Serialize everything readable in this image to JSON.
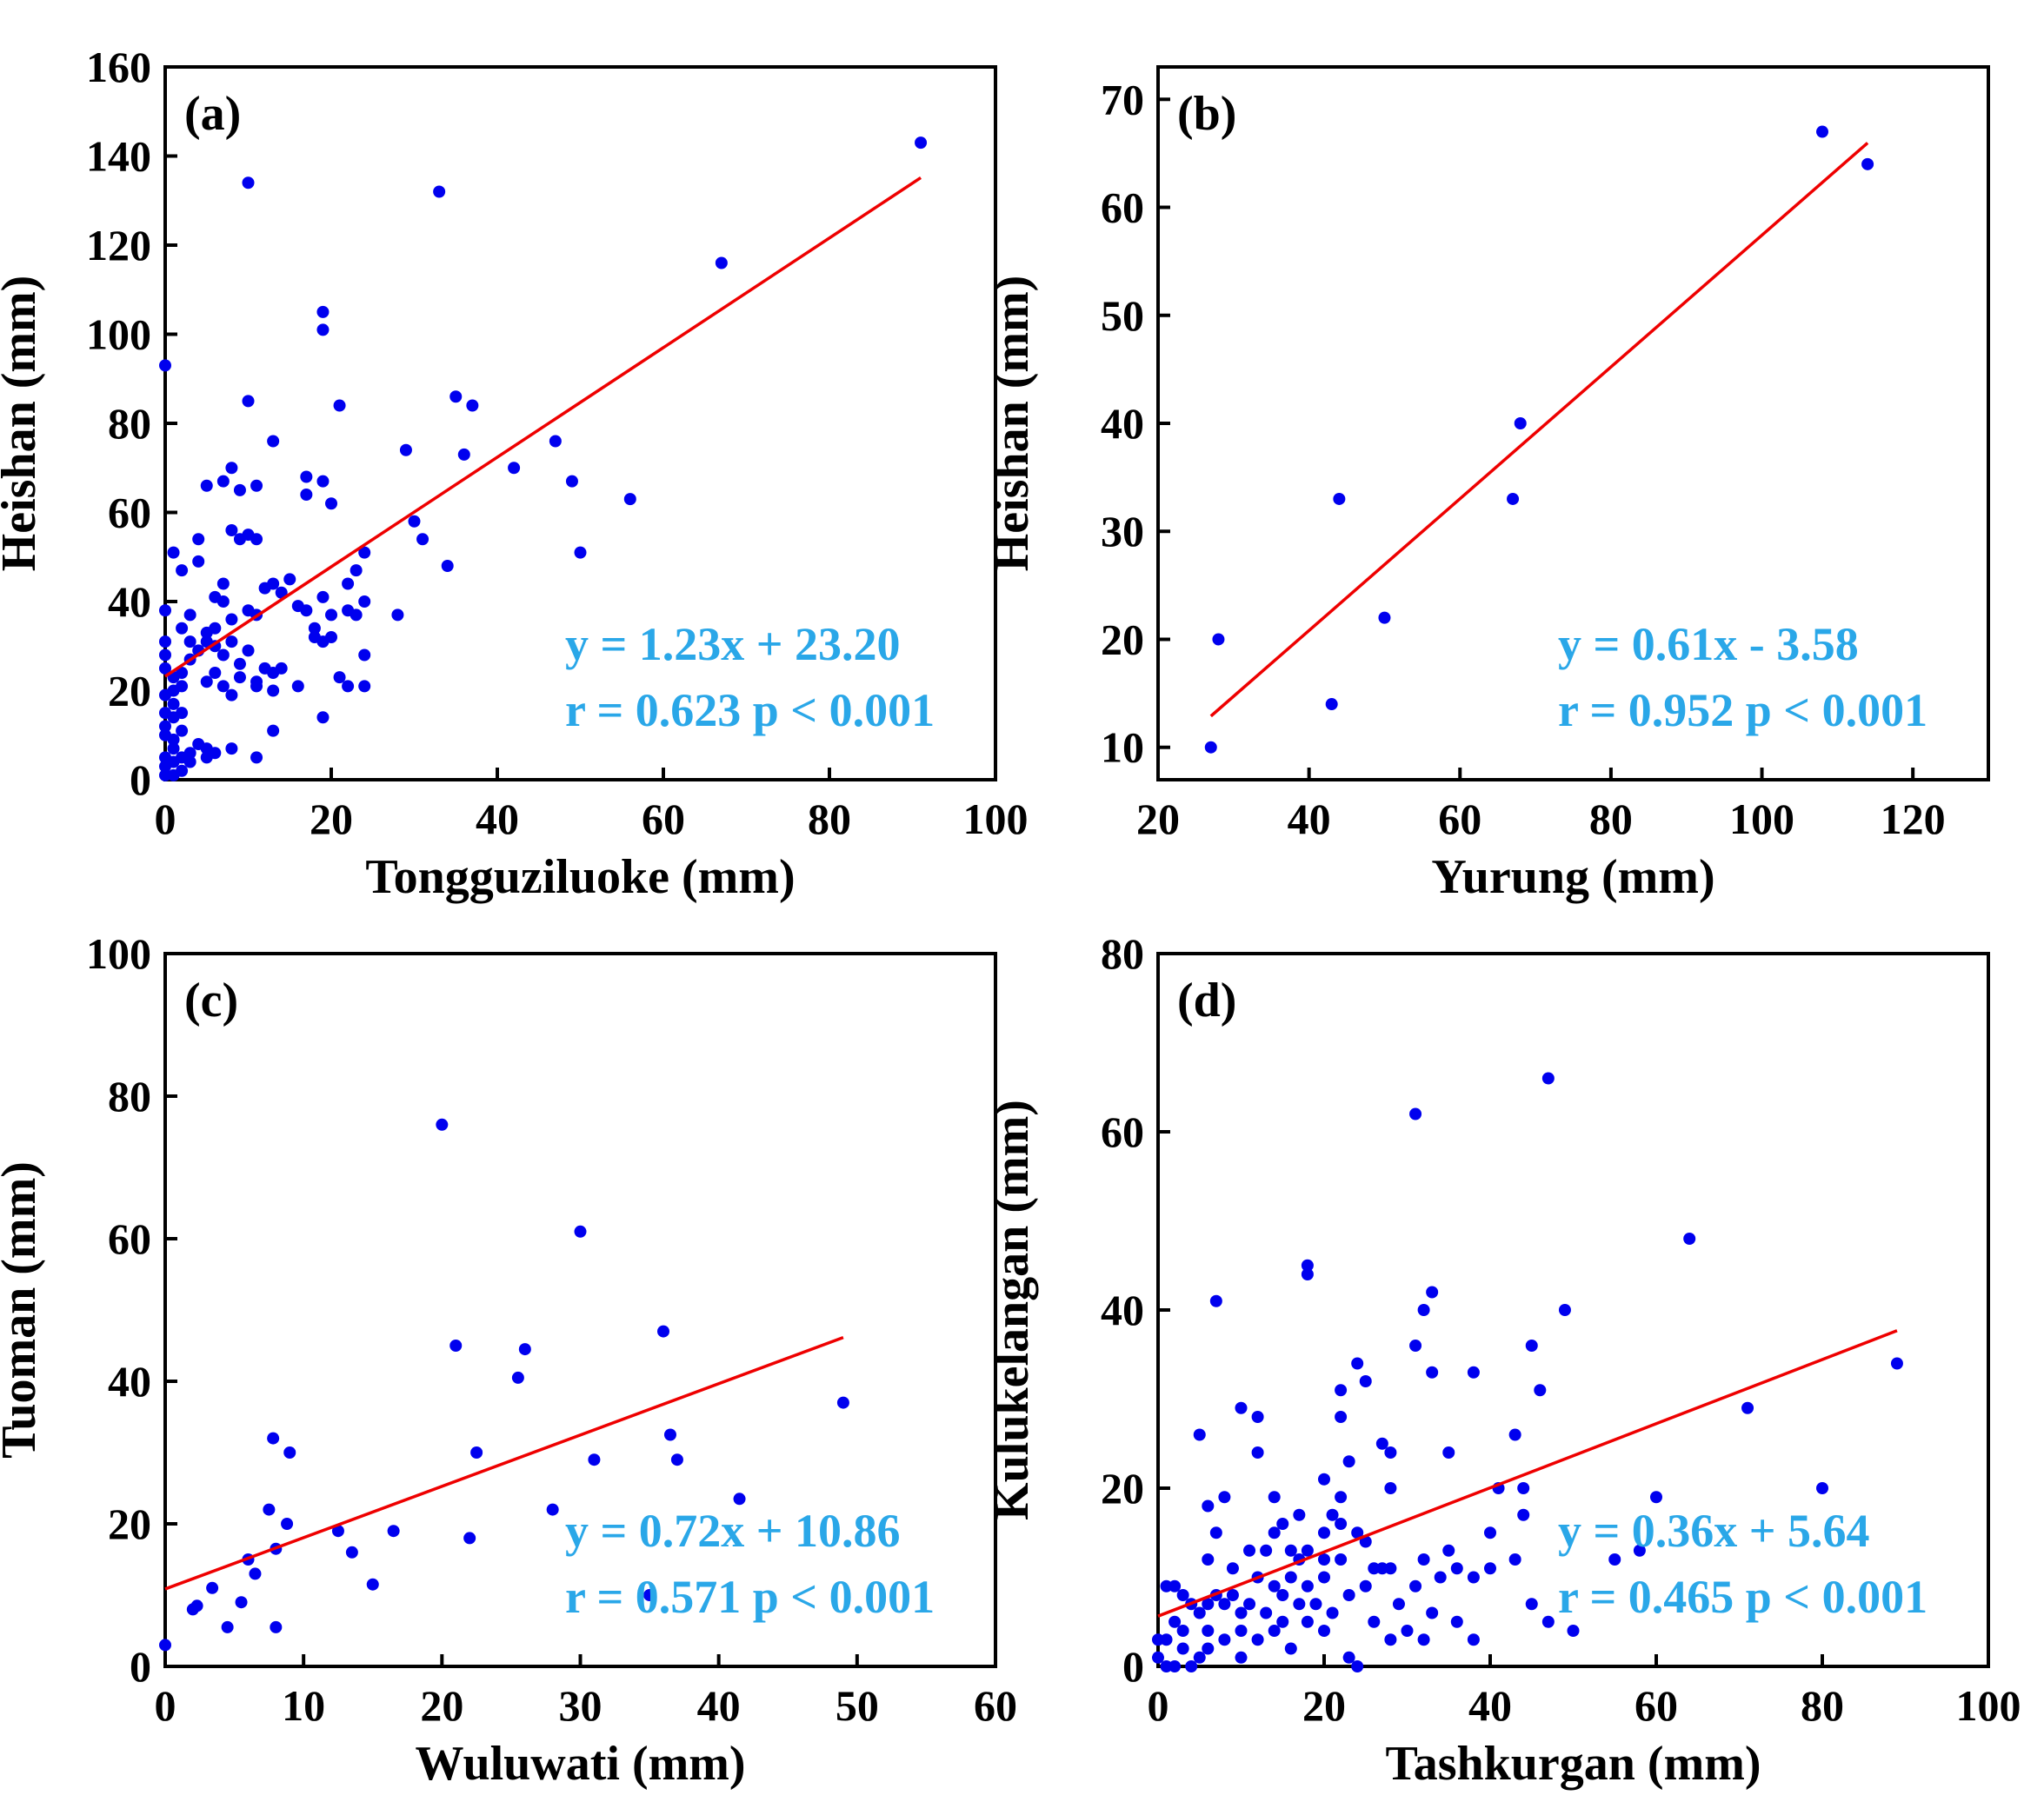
{
  "figure": {
    "colors": {
      "points": "#0000ee",
      "fit_line": "#ee0000",
      "annotation": "#2aa7e8",
      "axes": "#000000"
    }
  },
  "chart_data": [
    {
      "type": "scatter",
      "panel_label": "(a)",
      "xlabel": "Tongguziluoke (mm)",
      "ylabel": "Heishan (mm)",
      "xlim": [
        0,
        100
      ],
      "ylim": [
        0,
        160
      ],
      "xticks": [
        0,
        20,
        40,
        60,
        80,
        100
      ],
      "yticks": [
        0,
        20,
        40,
        60,
        80,
        100,
        120,
        140,
        160
      ],
      "equation": "y = 1.23x + 23.20",
      "stats": "r = 0.623 p < 0.001",
      "fit": {
        "slope": 1.23,
        "intercept": 23.2,
        "x_range": [
          0,
          91
        ]
      },
      "points": [
        [
          91,
          143
        ],
        [
          67,
          116
        ],
        [
          10,
          134
        ],
        [
          33,
          132
        ],
        [
          19,
          105
        ],
        [
          19,
          101
        ],
        [
          0,
          93
        ],
        [
          10,
          85
        ],
        [
          21,
          84
        ],
        [
          35,
          86
        ],
        [
          37,
          84
        ],
        [
          13,
          76
        ],
        [
          29,
          74
        ],
        [
          36,
          73
        ],
        [
          42,
          70
        ],
        [
          47,
          76
        ],
        [
          49,
          67
        ],
        [
          56,
          63
        ],
        [
          50,
          51
        ],
        [
          30,
          58
        ],
        [
          31,
          54
        ],
        [
          34,
          48
        ],
        [
          28,
          37
        ],
        [
          8,
          70
        ],
        [
          9,
          65
        ],
        [
          11,
          66
        ],
        [
          7,
          67
        ],
        [
          5,
          66
        ],
        [
          17,
          68
        ],
        [
          19,
          67
        ],
        [
          17,
          64
        ],
        [
          20,
          62
        ],
        [
          10,
          55
        ],
        [
          11,
          54
        ],
        [
          8,
          56
        ],
        [
          9,
          54
        ],
        [
          4,
          54
        ],
        [
          1,
          51
        ],
        [
          2,
          47
        ],
        [
          4,
          49
        ],
        [
          7,
          44
        ],
        [
          13,
          44
        ],
        [
          15,
          45
        ],
        [
          10,
          38
        ],
        [
          12,
          43
        ],
        [
          14,
          42
        ],
        [
          16,
          39
        ],
        [
          19,
          41
        ],
        [
          22,
          44
        ],
        [
          23,
          47
        ],
        [
          24,
          51
        ],
        [
          6,
          41
        ],
        [
          8,
          36
        ],
        [
          11,
          37
        ],
        [
          17,
          38
        ],
        [
          18,
          34
        ],
        [
          20,
          32
        ],
        [
          22,
          38
        ],
        [
          24,
          40
        ],
        [
          18,
          32
        ],
        [
          19,
          31
        ],
        [
          20,
          37
        ],
        [
          23,
          37
        ],
        [
          24,
          28
        ],
        [
          21,
          23
        ],
        [
          22,
          21
        ],
        [
          24,
          21
        ],
        [
          16,
          21
        ],
        [
          14,
          25
        ],
        [
          13,
          24
        ],
        [
          11,
          22
        ],
        [
          10,
          29
        ],
        [
          9,
          26
        ],
        [
          8,
          31
        ],
        [
          7,
          28
        ],
        [
          6,
          34
        ],
        [
          5,
          31
        ],
        [
          5,
          33
        ],
        [
          4,
          29
        ],
        [
          3,
          27
        ],
        [
          3,
          31
        ],
        [
          2,
          24
        ],
        [
          2,
          21
        ],
        [
          1,
          20
        ],
        [
          1,
          23
        ],
        [
          0,
          25
        ],
        [
          0,
          28
        ],
        [
          0,
          31
        ],
        [
          0,
          38
        ],
        [
          2,
          34
        ],
        [
          3,
          37
        ],
        [
          5,
          22
        ],
        [
          6,
          24
        ],
        [
          7,
          21
        ],
        [
          8,
          19
        ],
        [
          9,
          23
        ],
        [
          11,
          21
        ],
        [
          12,
          25
        ],
        [
          13,
          20
        ],
        [
          0,
          15
        ],
        [
          0,
          12
        ],
        [
          0,
          10
        ],
        [
          1,
          14
        ],
        [
          1,
          9
        ],
        [
          2,
          11
        ],
        [
          1,
          7
        ],
        [
          0,
          5
        ],
        [
          0,
          3
        ],
        [
          1,
          4
        ],
        [
          2,
          5
        ],
        [
          3,
          6
        ],
        [
          4,
          8
        ],
        [
          5,
          7
        ],
        [
          5,
          5
        ],
        [
          6,
          6
        ],
        [
          8,
          7
        ],
        [
          11,
          5
        ],
        [
          2,
          2
        ],
        [
          1,
          1
        ],
        [
          0,
          1
        ],
        [
          3,
          4
        ],
        [
          1,
          17
        ],
        [
          0,
          19
        ],
        [
          2,
          15
        ],
        [
          19,
          14
        ],
        [
          13,
          11
        ],
        [
          6,
          30
        ],
        [
          7,
          40
        ]
      ]
    },
    {
      "type": "scatter",
      "panel_label": "(b)",
      "xlabel": "Yurung (mm)",
      "ylabel": "Heishan (mm)",
      "xlim": [
        20,
        130
      ],
      "ylim": [
        7,
        73
      ],
      "xticks": [
        20,
        40,
        60,
        80,
        100,
        120
      ],
      "yticks": [
        10,
        20,
        30,
        40,
        50,
        60,
        70
      ],
      "equation": "y = 0.61x - 3.58",
      "stats": "r = 0.952 p < 0.001",
      "fit": {
        "slope": 0.61,
        "intercept": -3.58,
        "x_range": [
          27,
          114
        ]
      },
      "points": [
        [
          27,
          10
        ],
        [
          28,
          20
        ],
        [
          43,
          14
        ],
        [
          44,
          33
        ],
        [
          50,
          22
        ],
        [
          67,
          33
        ],
        [
          68,
          40
        ],
        [
          108,
          67
        ],
        [
          114,
          64
        ]
      ]
    },
    {
      "type": "scatter",
      "panel_label": "(c)",
      "xlabel": "Wuluwati (mm)",
      "ylabel": "Tuoman (mm)",
      "xlim": [
        0,
        60
      ],
      "ylim": [
        0,
        100
      ],
      "xticks": [
        0,
        10,
        20,
        30,
        40,
        50,
        60
      ],
      "yticks": [
        0,
        20,
        40,
        60,
        80,
        100
      ],
      "equation": "y = 0.72x + 10.86",
      "stats": "r = 0.571 p < 0.001",
      "fit": {
        "slope": 0.72,
        "intercept": 10.86,
        "x_range": [
          0,
          49
        ]
      },
      "points": [
        [
          0,
          3
        ],
        [
          2,
          8
        ],
        [
          2.3,
          8.5
        ],
        [
          3.4,
          11
        ],
        [
          4.5,
          5.5
        ],
        [
          5.5,
          9
        ],
        [
          6,
          15
        ],
        [
          6.5,
          13
        ],
        [
          7.5,
          22
        ],
        [
          7.8,
          32
        ],
        [
          8,
          5.5
        ],
        [
          8,
          16.5
        ],
        [
          8.8,
          20
        ],
        [
          9,
          30
        ],
        [
          12.5,
          19
        ],
        [
          13.5,
          16
        ],
        [
          15,
          11.5
        ],
        [
          16.5,
          19
        ],
        [
          20,
          76
        ],
        [
          21,
          45
        ],
        [
          22,
          18
        ],
        [
          22.5,
          30
        ],
        [
          25.5,
          40.5
        ],
        [
          26,
          44.5
        ],
        [
          28,
          22
        ],
        [
          30,
          61
        ],
        [
          31,
          29
        ],
        [
          35,
          10
        ],
        [
          36,
          47
        ],
        [
          36.5,
          32.5
        ],
        [
          37,
          29
        ],
        [
          41.5,
          23.5
        ],
        [
          49,
          37
        ]
      ]
    },
    {
      "type": "scatter",
      "panel_label": "(d)",
      "xlabel": "Tashkurgan (mm)",
      "ylabel": "Kulukelangan (mm)",
      "xlim": [
        0,
        100
      ],
      "ylim": [
        0,
        80
      ],
      "xticks": [
        0,
        20,
        40,
        60,
        80,
        100
      ],
      "yticks": [
        0,
        20,
        40,
        60,
        80
      ],
      "equation": "y = 0.36x + 5.64",
      "stats": "r = 0.465 p < 0.001",
      "fit": {
        "slope": 0.36,
        "intercept": 5.64,
        "x_range": [
          0,
          89
        ]
      },
      "points": [
        [
          47,
          66
        ],
        [
          31,
          62
        ],
        [
          64,
          48
        ],
        [
          7,
          41
        ],
        [
          33,
          42
        ],
        [
          32,
          40
        ],
        [
          49,
          40
        ],
        [
          18,
          45
        ],
        [
          18,
          44
        ],
        [
          31,
          36
        ],
        [
          45,
          36
        ],
        [
          89,
          34
        ],
        [
          24,
          34
        ],
        [
          25,
          32
        ],
        [
          33,
          33
        ],
        [
          38,
          33
        ],
        [
          46,
          31
        ],
        [
          22,
          31
        ],
        [
          71,
          29
        ],
        [
          10,
          29
        ],
        [
          12,
          28
        ],
        [
          5,
          26
        ],
        [
          43,
          26
        ],
        [
          28,
          24
        ],
        [
          35,
          24
        ],
        [
          22,
          28
        ],
        [
          27,
          25
        ],
        [
          12,
          24
        ],
        [
          23,
          23
        ],
        [
          28,
          20
        ],
        [
          41,
          20
        ],
        [
          44,
          20
        ],
        [
          60,
          19
        ],
        [
          80,
          20
        ],
        [
          14,
          19
        ],
        [
          8,
          19
        ],
        [
          6,
          18
        ],
        [
          17,
          17
        ],
        [
          20,
          21
        ],
        [
          21,
          17
        ],
        [
          20,
          15
        ],
        [
          22,
          16
        ],
        [
          24,
          15
        ],
        [
          15,
          16
        ],
        [
          44,
          17
        ],
        [
          40,
          15
        ],
        [
          7,
          15
        ],
        [
          13,
          13
        ],
        [
          18,
          13
        ],
        [
          17,
          12
        ],
        [
          6,
          12
        ],
        [
          35,
          13
        ],
        [
          36,
          11
        ],
        [
          43,
          12
        ],
        [
          40,
          11
        ],
        [
          38,
          10
        ],
        [
          32,
          12
        ],
        [
          26,
          11
        ],
        [
          28,
          11
        ],
        [
          25,
          9
        ],
        [
          22,
          12
        ],
        [
          20,
          10
        ],
        [
          18,
          9
        ],
        [
          16,
          10
        ],
        [
          15,
          8
        ],
        [
          14,
          9
        ],
        [
          12,
          10
        ],
        [
          11,
          7
        ],
        [
          10,
          6
        ],
        [
          9,
          8
        ],
        [
          8,
          7
        ],
        [
          7,
          8
        ],
        [
          6,
          7
        ],
        [
          5,
          6
        ],
        [
          4,
          7
        ],
        [
          3,
          8
        ],
        [
          2,
          9
        ],
        [
          1,
          9
        ],
        [
          2,
          5
        ],
        [
          3,
          4
        ],
        [
          1,
          3
        ],
        [
          0,
          1
        ],
        [
          1,
          0
        ],
        [
          2,
          0
        ],
        [
          4,
          0
        ],
        [
          5,
          1
        ],
        [
          6,
          2
        ],
        [
          8,
          3
        ],
        [
          10,
          4
        ],
        [
          12,
          3
        ],
        [
          14,
          4
        ],
        [
          16,
          2
        ],
        [
          18,
          5
        ],
        [
          20,
          4
        ],
        [
          23,
          1
        ],
        [
          24,
          0
        ],
        [
          26,
          5
        ],
        [
          28,
          3
        ],
        [
          30,
          4
        ],
        [
          32,
          3
        ],
        [
          33,
          6
        ],
        [
          34,
          10
        ],
        [
          38,
          3
        ],
        [
          45,
          7
        ],
        [
          47,
          5
        ],
        [
          50,
          4
        ],
        [
          55,
          12
        ],
        [
          58,
          13
        ],
        [
          9,
          11
        ],
        [
          11,
          13
        ],
        [
          13,
          6
        ],
        [
          15,
          5
        ],
        [
          17,
          7
        ],
        [
          19,
          7
        ],
        [
          21,
          6
        ],
        [
          23,
          8
        ],
        [
          29,
          7
        ],
        [
          31,
          9
        ],
        [
          36,
          5
        ],
        [
          0,
          3
        ],
        [
          3,
          2
        ],
        [
          6,
          4
        ],
        [
          10,
          1
        ],
        [
          14,
          15
        ],
        [
          16,
          13
        ],
        [
          20,
          12
        ],
        [
          22,
          19
        ],
        [
          25,
          14
        ],
        [
          27,
          11
        ]
      ]
    }
  ]
}
